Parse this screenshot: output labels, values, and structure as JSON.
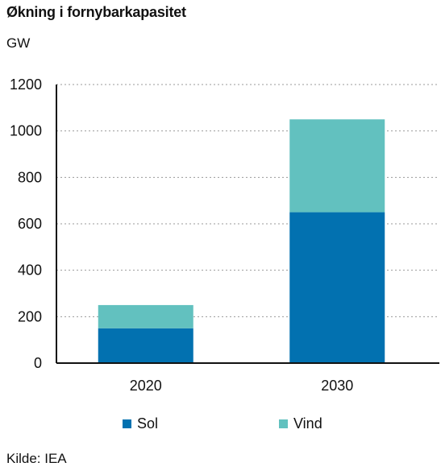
{
  "title": "Økning i fornybarkapasitet",
  "unit": "GW",
  "source": "Kilde: IEA",
  "colors": {
    "sol": "#0271b0",
    "vind": "#62c1bf",
    "grid": "#9a9a9a",
    "axis": "#111111"
  },
  "chart_data": {
    "type": "bar",
    "stacked": true,
    "title": "Økning i fornybarkapasitet",
    "ylabel": "GW",
    "xlabel": "",
    "categories": [
      "2020",
      "2030"
    ],
    "series": [
      {
        "name": "Sol",
        "values": [
          150,
          650
        ]
      },
      {
        "name": "Vind",
        "values": [
          100,
          400
        ]
      }
    ],
    "ylim": [
      0,
      1200
    ],
    "yticks": [
      0,
      200,
      400,
      600,
      800,
      1000,
      1200
    ],
    "grid": true,
    "legend": "bottom"
  }
}
